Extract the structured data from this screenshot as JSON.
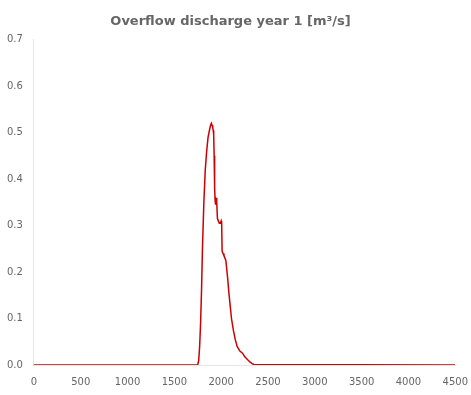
{
  "chart_data": {
    "type": "line",
    "title": "Overflow discharge year 1 [m³/s]",
    "x": [
      0,
      1749,
      1760,
      1770,
      1780,
      1790,
      1800,
      1815,
      1830,
      1845,
      1860,
      1875,
      1885,
      1895,
      1905,
      1910,
      1915,
      1920,
      1925,
      1930,
      1935,
      1940,
      1945,
      1950,
      1955,
      1960,
      1970,
      1975,
      1980,
      1990,
      2000,
      2005,
      2010,
      2020,
      2030,
      2050,
      2060,
      2070,
      2080,
      2090,
      2100,
      2110,
      2130,
      2150,
      2170,
      2200,
      2230,
      2250,
      2280,
      2310,
      2330,
      2350,
      4500
    ],
    "values": [
      0,
      0,
      0.01,
      0.04,
      0.09,
      0.16,
      0.25,
      0.35,
      0.42,
      0.46,
      0.49,
      0.505,
      0.515,
      0.52,
      0.515,
      0.51,
      0.505,
      0.495,
      0.45,
      0.38,
      0.355,
      0.345,
      0.355,
      0.36,
      0.35,
      0.315,
      0.31,
      0.31,
      0.305,
      0.305,
      0.31,
      0.305,
      0.245,
      0.24,
      0.235,
      0.225,
      0.205,
      0.185,
      0.16,
      0.14,
      0.12,
      0.1,
      0.075,
      0.055,
      0.04,
      0.03,
      0.025,
      0.018,
      0.012,
      0.006,
      0.003,
      0.001,
      0
    ],
    "color": "#cc0000",
    "xlim": [
      0,
      4500
    ],
    "ylim": [
      0,
      0.7
    ],
    "xticks": [
      0,
      500,
      1000,
      1500,
      2000,
      2500,
      3000,
      3500,
      4000,
      4500
    ],
    "yticks": [
      {
        "value": 0,
        "label": "0.0"
      },
      0.1,
      0.2,
      0.3,
      0.4,
      0.5,
      0.6,
      0.7
    ],
    "grid": false
  }
}
